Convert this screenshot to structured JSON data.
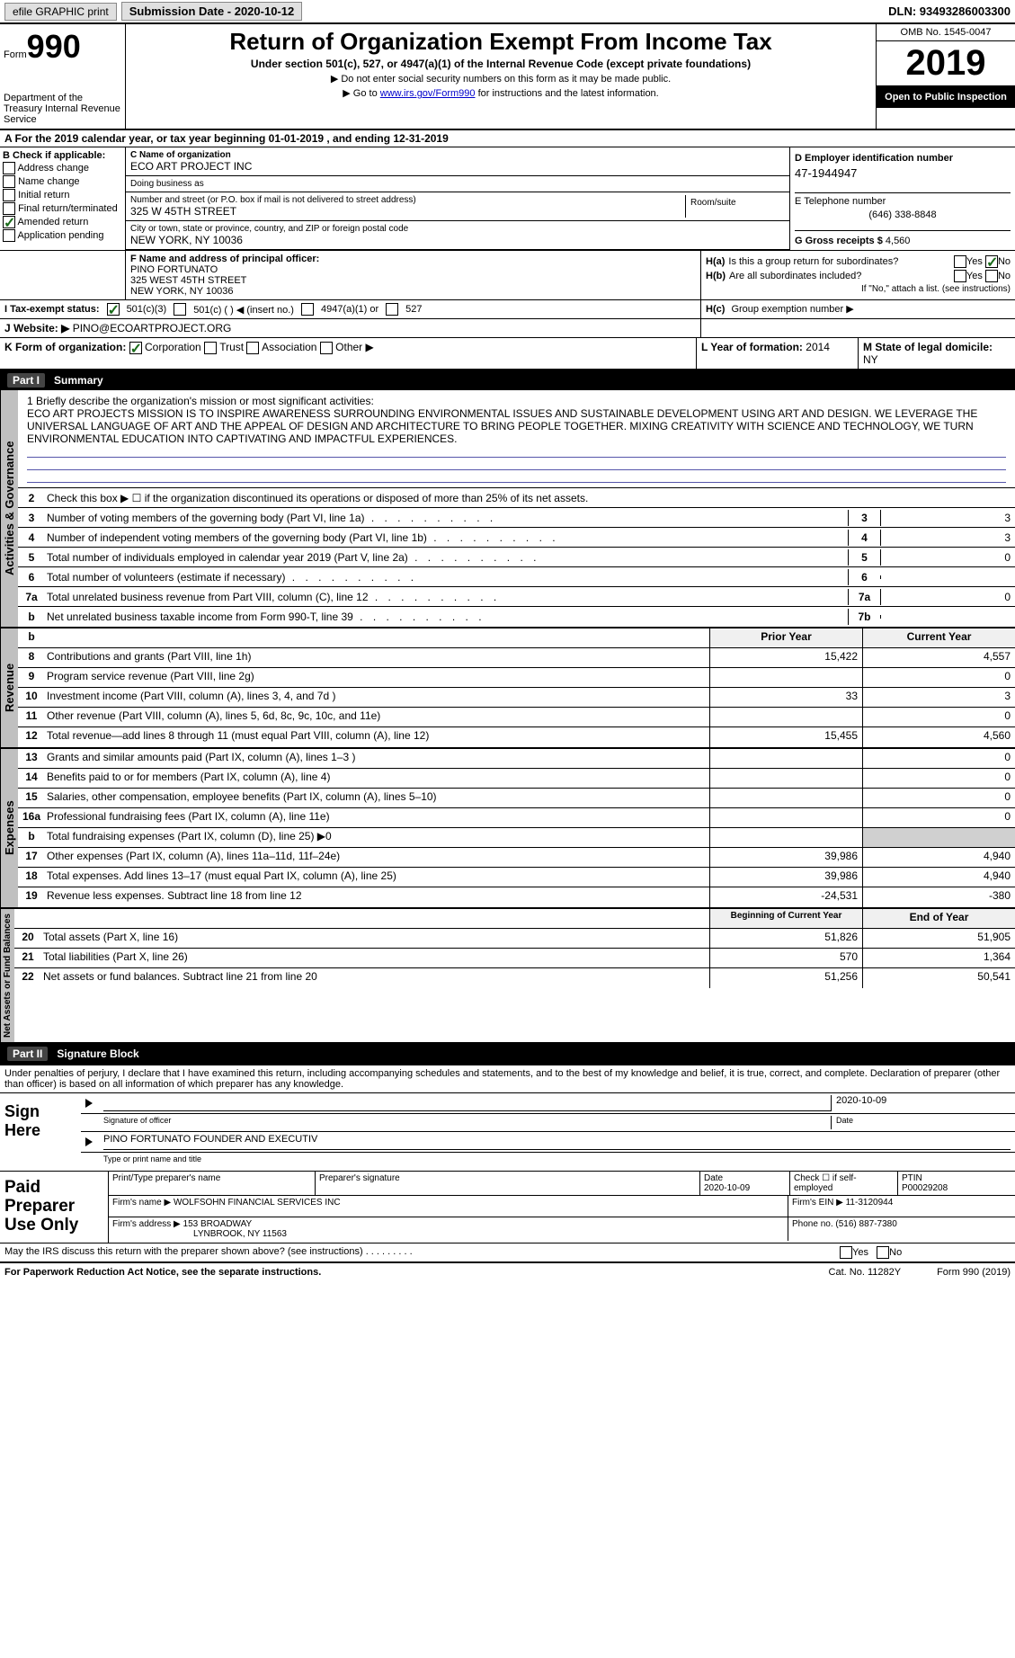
{
  "topbar": {
    "efile": "efile GRAPHIC print",
    "submission": "Submission Date - 2020-10-12",
    "dln": "DLN: 93493286003300"
  },
  "header": {
    "form_label": "Form",
    "form_num": "990",
    "dept": "Department of the Treasury Internal Revenue Service",
    "title": "Return of Organization Exempt From Income Tax",
    "subtitle": "Under section 501(c), 527, or 4947(a)(1) of the Internal Revenue Code (except private foundations)",
    "note1": "▶ Do not enter social security numbers on this form as it may be made public.",
    "note2_pre": "▶ Go to ",
    "note2_link": "www.irs.gov/Form990",
    "note2_post": " for instructions and the latest information.",
    "omb": "OMB No. 1545-0047",
    "year": "2019",
    "inspect": "Open to Public Inspection"
  },
  "section_a": "A For the 2019 calendar year, or tax year beginning 01-01-2019    , and ending 12-31-2019",
  "section_b": {
    "title": "B Check if applicable:",
    "items": [
      "Address change",
      "Name change",
      "Initial return",
      "Final return/terminated",
      "Amended return",
      "Application pending"
    ],
    "amended_checked": true
  },
  "section_c": {
    "name_label": "C Name of organization",
    "name": "ECO ART PROJECT INC",
    "dba_label": "Doing business as",
    "addr_label": "Number and street (or P.O. box if mail is not delivered to street address)",
    "addr": "325 W 45TH STREET",
    "room_label": "Room/suite",
    "city_label": "City or town, state or province, country, and ZIP or foreign postal code",
    "city": "NEW YORK, NY  10036"
  },
  "section_d": {
    "label": "D Employer identification number",
    "ein": "47-1944947",
    "tel_label": "E Telephone number",
    "tel": "(646) 338-8848",
    "gross_label": "G Gross receipts $",
    "gross": "4,560"
  },
  "section_f": {
    "label": "F  Name and address of principal officer:",
    "name": "PINO FORTUNATO",
    "addr1": "325 WEST 45TH STREET",
    "addr2": "NEW YORK, NY  10036"
  },
  "section_h": {
    "ha_label": "H(a)",
    "ha_text": "Is this a group return for subordinates?",
    "hb_label": "H(b)",
    "hb_text": "Are all subordinates included?",
    "hb_note": "If \"No,\" attach a list. (see instructions)",
    "hc_label": "H(c)",
    "hc_text": "Group exemption number ▶"
  },
  "tax_status": {
    "label": "I   Tax-exempt status:",
    "opt1": "501(c)(3)",
    "opt2": "501(c) (   ) ◀ (insert no.)",
    "opt3": "4947(a)(1) or",
    "opt4": "527"
  },
  "website": {
    "label": "J   Website: ▶",
    "val": "PINO@ECOARTPROJECT.ORG"
  },
  "section_k": {
    "label": "K Form of organization:",
    "corp": "Corporation",
    "trust": "Trust",
    "assoc": "Association",
    "other": "Other ▶"
  },
  "section_l": {
    "label": "L Year of formation:",
    "val": "2014"
  },
  "section_m": {
    "label": "M State of legal domicile:",
    "val": "NY"
  },
  "part1": {
    "num": "Part I",
    "title": "Summary"
  },
  "mission": {
    "label": "1   Briefly describe the organization's mission or most significant activities:",
    "text": "ECO ART PROJECTS MISSION IS TO INSPIRE AWARENESS SURROUNDING ENVIRONMENTAL ISSUES AND SUSTAINABLE DEVELOPMENT USING ART AND DESIGN. WE LEVERAGE THE UNIVERSAL LANGUAGE OF ART AND THE APPEAL OF DESIGN AND ARCHITECTURE TO BRING PEOPLE TOGETHER. MIXING CREATIVITY WITH SCIENCE AND TECHNOLOGY, WE TURN ENVIRONMENTAL EDUCATION INTO CAPTIVATING AND IMPACTFUL EXPERIENCES."
  },
  "governance_rows": [
    {
      "num": "2",
      "desc": "Check this box ▶ ☐  if the organization discontinued its operations or disposed of more than 25% of its net assets.",
      "label": "",
      "val": ""
    },
    {
      "num": "3",
      "desc": "Number of voting members of the governing body (Part VI, line 1a)",
      "label": "3",
      "val": "3"
    },
    {
      "num": "4",
      "desc": "Number of independent voting members of the governing body (Part VI, line 1b)",
      "label": "4",
      "val": "3"
    },
    {
      "num": "5",
      "desc": "Total number of individuals employed in calendar year 2019 (Part V, line 2a)",
      "label": "5",
      "val": "0"
    },
    {
      "num": "6",
      "desc": "Total number of volunteers (estimate if necessary)",
      "label": "6",
      "val": ""
    },
    {
      "num": "7a",
      "desc": "Total unrelated business revenue from Part VIII, column (C), line 12",
      "label": "7a",
      "val": "0"
    },
    {
      "num": "b",
      "desc": "Net unrelated business taxable income from Form 990-T, line 39",
      "label": "7b",
      "val": ""
    }
  ],
  "revenue_header": {
    "col1": "Prior Year",
    "col2": "Current Year"
  },
  "revenue_rows": [
    {
      "num": "8",
      "desc": "Contributions and grants (Part VIII, line 1h)",
      "col1": "15,422",
      "col2": "4,557"
    },
    {
      "num": "9",
      "desc": "Program service revenue (Part VIII, line 2g)",
      "col1": "",
      "col2": "0"
    },
    {
      "num": "10",
      "desc": "Investment income (Part VIII, column (A), lines 3, 4, and 7d )",
      "col1": "33",
      "col2": "3"
    },
    {
      "num": "11",
      "desc": "Other revenue (Part VIII, column (A), lines 5, 6d, 8c, 9c, 10c, and 11e)",
      "col1": "",
      "col2": "0"
    },
    {
      "num": "12",
      "desc": "Total revenue—add lines 8 through 11 (must equal Part VIII, column (A), line 12)",
      "col1": "15,455",
      "col2": "4,560"
    }
  ],
  "expense_rows": [
    {
      "num": "13",
      "desc": "Grants and similar amounts paid (Part IX, column (A), lines 1–3 )",
      "col1": "",
      "col2": "0"
    },
    {
      "num": "14",
      "desc": "Benefits paid to or for members (Part IX, column (A), line 4)",
      "col1": "",
      "col2": "0"
    },
    {
      "num": "15",
      "desc": "Salaries, other compensation, employee benefits (Part IX, column (A), lines 5–10)",
      "col1": "",
      "col2": "0"
    },
    {
      "num": "16a",
      "desc": "Professional fundraising fees (Part IX, column (A), line 11e)",
      "col1": "",
      "col2": "0"
    },
    {
      "num": "b",
      "desc": "Total fundraising expenses (Part IX, column (D), line 25) ▶0",
      "col1": "",
      "col2": ""
    },
    {
      "num": "17",
      "desc": "Other expenses (Part IX, column (A), lines 11a–11d, 11f–24e)",
      "col1": "39,986",
      "col2": "4,940"
    },
    {
      "num": "18",
      "desc": "Total expenses. Add lines 13–17 (must equal Part IX, column (A), line 25)",
      "col1": "39,986",
      "col2": "4,940"
    },
    {
      "num": "19",
      "desc": "Revenue less expenses. Subtract line 18 from line 12",
      "col1": "-24,531",
      "col2": "-380"
    }
  ],
  "netassets_header": {
    "col1": "Beginning of Current Year",
    "col2": "End of Year"
  },
  "netassets_rows": [
    {
      "num": "20",
      "desc": "Total assets (Part X, line 16)",
      "col1": "51,826",
      "col2": "51,905"
    },
    {
      "num": "21",
      "desc": "Total liabilities (Part X, line 26)",
      "col1": "570",
      "col2": "1,364"
    },
    {
      "num": "22",
      "desc": "Net assets or fund balances. Subtract line 21 from line 20",
      "col1": "51,256",
      "col2": "50,541"
    }
  ],
  "part2": {
    "num": "Part II",
    "title": "Signature Block"
  },
  "sig": {
    "declaration": "Under penalties of perjury, I declare that I have examined this return, including accompanying schedules and statements, and to the best of my knowledge and belief, it is true, correct, and complete. Declaration of preparer (other than officer) is based on all information of which preparer has any knowledge.",
    "sign_here": "Sign Here",
    "sig_officer": "Signature of officer",
    "sig_date": "2020-10-09",
    "date_label": "Date",
    "name_title": "PINO FORTUNATO  FOUNDER AND EXECUTIV",
    "type_name": "Type or print name and title"
  },
  "preparer": {
    "label": "Paid Preparer Use Only",
    "print_label": "Print/Type preparer's name",
    "sig_label": "Preparer's signature",
    "date_label": "Date",
    "date": "2020-10-09",
    "check_label": "Check ☐ if self-employed",
    "ptin_label": "PTIN",
    "ptin": "P00029208",
    "firm_name_label": "Firm's name    ▶",
    "firm_name": "WOLFSOHN FINANCIAL SERVICES INC",
    "firm_ein_label": "Firm's EIN ▶",
    "firm_ein": "11-3120944",
    "firm_addr_label": "Firm's address ▶",
    "firm_addr1": "153 BROADWAY",
    "firm_addr2": "LYNBROOK, NY  11563",
    "phone_label": "Phone no.",
    "phone": "(516) 887-7380"
  },
  "irs_discuss": "May the IRS discuss this return with the preparer shown above? (see instructions)",
  "footer": {
    "left": "For Paperwork Reduction Act Notice, see the separate instructions.",
    "mid": "Cat. No. 11282Y",
    "right": "Form 990 (2019)"
  },
  "labels": {
    "activities": "Activities & Governance",
    "revenue": "Revenue",
    "expenses": "Expenses",
    "netassets": "Net Assets or Fund Balances",
    "yes": "Yes",
    "no": "No"
  }
}
